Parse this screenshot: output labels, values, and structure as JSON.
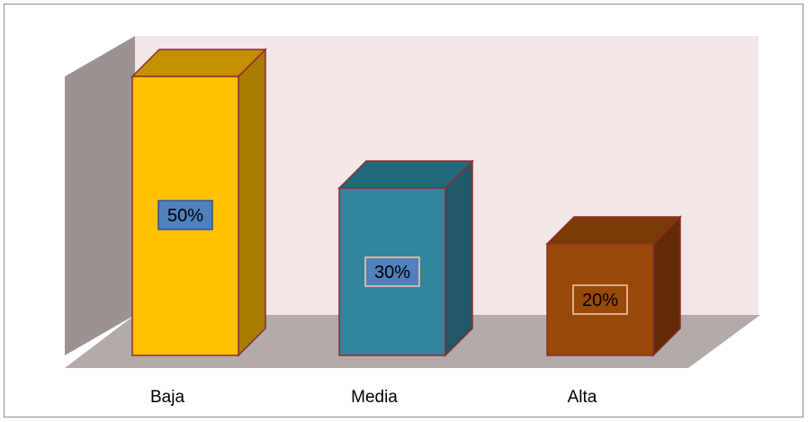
{
  "chart_data": {
    "type": "bar",
    "categories": [
      "Baja",
      "Media",
      "Alta"
    ],
    "values": [
      50,
      30,
      20
    ],
    "value_labels": [
      "50%",
      "30%",
      "20%"
    ],
    "ylim": [
      0,
      50
    ],
    "legend": "none",
    "grid": false,
    "colors": {
      "bars": [
        {
          "front": "#FFC000",
          "top": "#C49000",
          "side": "#A87C00",
          "label_bg": "#4F81BD",
          "label_border": "#2F5597"
        },
        {
          "front": "#31859C",
          "top": "#21687C",
          "side": "#205867",
          "label_bg": "#4F81BD",
          "label_border": "#F8CBAD"
        },
        {
          "front": "#984807",
          "top": "#7A3A05",
          "side": "#632C04",
          "label_bg": "#984807",
          "label_border": "#F8CBAD"
        }
      ],
      "bar_outline": "#8B2E2E",
      "back_wall": "#F3E6E6",
      "side_wall": "#9B9392",
      "floor": "#B3ABAA"
    }
  }
}
